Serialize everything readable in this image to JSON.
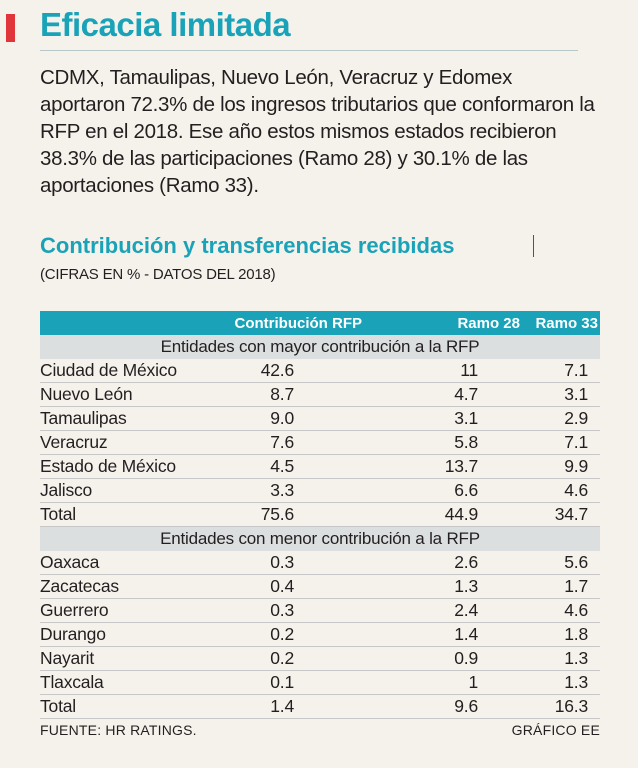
{
  "header": {
    "title": "Eficacia limitada"
  },
  "intro": {
    "text": "CDMX, Tamaulipas, Nuevo León, Veracruz y Edomex aportaron 72.3% de los ingresos tributarios que conformaron la RFP en el 2018. Ese año estos mismos estados recibieron 38.3% de las participaciones (Ramo 28) y 30.1% de las aportaciones (Ramo 33)."
  },
  "table_section": {
    "title": "Contribución y transferencias recibidas",
    "units": "(CIFRAS EN % - DATOS DEL 2018)",
    "columns": [
      "Contribución RFP",
      "Ramo 28",
      "Ramo 33"
    ],
    "groups": [
      {
        "label": "Entidades con mayor contribución a la RFP",
        "rows": [
          {
            "name": "Ciudad de México",
            "contribucion": "42.6",
            "ramo28": "11",
            "ramo33": "7.1"
          },
          {
            "name": "Nuevo León",
            "contribucion": "8.7",
            "ramo28": "4.7",
            "ramo33": "3.1"
          },
          {
            "name": "Tamaulipas",
            "contribucion": "9.0",
            "ramo28": "3.1",
            "ramo33": "2.9"
          },
          {
            "name": "Veracruz",
            "contribucion": "7.6",
            "ramo28": "5.8",
            "ramo33": "7.1"
          },
          {
            "name": "Estado de México",
            "contribucion": "4.5",
            "ramo28": "13.7",
            "ramo33": "9.9"
          },
          {
            "name": "Jalisco",
            "contribucion": "3.3",
            "ramo28": "6.6",
            "ramo33": "4.6"
          },
          {
            "name": "Total",
            "contribucion": "75.6",
            "ramo28": "44.9",
            "ramo33": "34.7"
          }
        ]
      },
      {
        "label": "Entidades con menor contribución a la RFP",
        "rows": [
          {
            "name": "Oaxaca",
            "contribucion": "0.3",
            "ramo28": "2.6",
            "ramo33": "5.6"
          },
          {
            "name": "Zacatecas",
            "contribucion": "0.4",
            "ramo28": "1.3",
            "ramo33": "1.7"
          },
          {
            "name": "Guerrero",
            "contribucion": "0.3",
            "ramo28": "2.4",
            "ramo33": "4.6"
          },
          {
            "name": "Durango",
            "contribucion": "0.2",
            "ramo28": "1.4",
            "ramo33": "1.8"
          },
          {
            "name": "Nayarit",
            "contribucion": "0.2",
            "ramo28": "0.9",
            "ramo33": "1.3"
          },
          {
            "name": "Tlaxcala",
            "contribucion": "0.1",
            "ramo28": "1",
            "ramo33": "1.3"
          },
          {
            "name": "Total",
            "contribucion": "1.4",
            "ramo28": "9.6",
            "ramo33": "16.3"
          }
        ]
      }
    ]
  },
  "footer": {
    "source": "FUENTE: HR RATINGS.",
    "credit": "GRÁFICO EE"
  },
  "colors": {
    "accent": "#1aa3b8",
    "marker": "#e0363b",
    "background": "#f5f2ec",
    "group_band": "#dcdfe0"
  }
}
